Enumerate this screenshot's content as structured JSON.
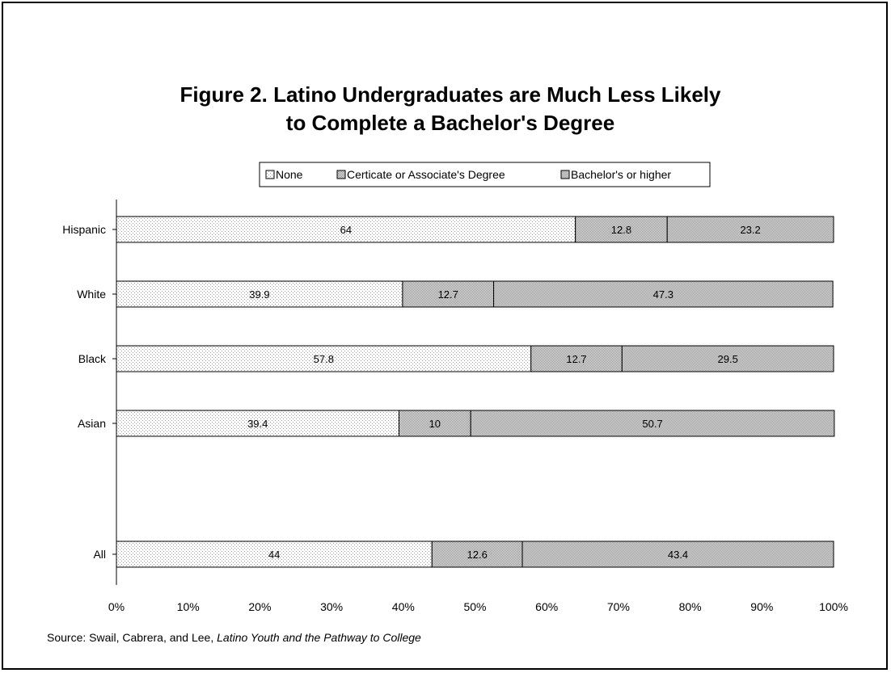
{
  "chart_data": {
    "type": "bar",
    "orientation": "horizontal",
    "stacked": true,
    "title_lines": [
      "Figure 2. Latino Undergraduates are Much Less Likely",
      "to Complete a Bachelor's Degree"
    ],
    "categories": [
      "Hispanic",
      "White",
      "Black",
      "Asian",
      "All"
    ],
    "series": [
      {
        "name": "None",
        "values": [
          64,
          39.9,
          57.8,
          39.4,
          44
        ],
        "labels": [
          "64",
          "39.9",
          "57.8",
          "39.4",
          "44"
        ]
      },
      {
        "name": "Certicate or Associate's Degree",
        "values": [
          12.8,
          12.7,
          12.7,
          10,
          12.6
        ],
        "labels": [
          "12.8",
          "12.7",
          "12.7",
          "10",
          "12.6"
        ]
      },
      {
        "name": "Bachelor's or higher",
        "values": [
          23.2,
          47.3,
          29.5,
          50.7,
          43.4
        ],
        "labels": [
          "23.2",
          "47.3",
          "29.5",
          "50.7",
          "43.4"
        ]
      }
    ],
    "xlim": [
      0,
      100
    ],
    "x_ticks": [
      0,
      10,
      20,
      30,
      40,
      50,
      60,
      70,
      80,
      90,
      100
    ],
    "x_tick_labels": [
      "0%",
      "10%",
      "20%",
      "30%",
      "40%",
      "50%",
      "60%",
      "70%",
      "80%",
      "90%",
      "100%"
    ],
    "legend_position": "top",
    "grid": false,
    "source": {
      "prefix": "Source: Swail, Cabrera, and Lee, ",
      "italic": "Latino Youth and the Pathway to College"
    }
  }
}
